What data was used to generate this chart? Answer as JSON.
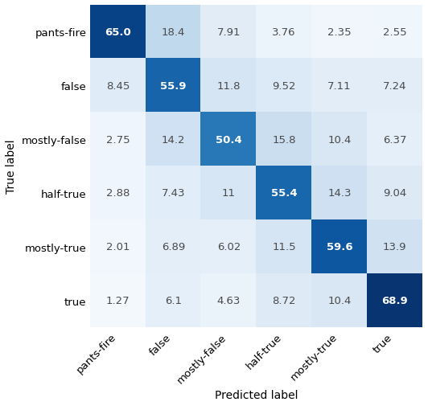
{
  "labels": [
    "pants-fire",
    "false",
    "mostly-false",
    "half-true",
    "mostly-true",
    "true"
  ],
  "matrix": [
    [
      65.0,
      18.4,
      7.91,
      3.76,
      2.35,
      2.55
    ],
    [
      8.45,
      55.9,
      11.8,
      9.52,
      7.11,
      7.24
    ],
    [
      2.75,
      14.2,
      50.4,
      15.8,
      10.4,
      6.37
    ],
    [
      2.88,
      7.43,
      11.0,
      55.4,
      14.3,
      9.04
    ],
    [
      2.01,
      6.89,
      6.02,
      11.5,
      59.6,
      13.9
    ],
    [
      1.27,
      6.1,
      4.63,
      8.72,
      10.4,
      68.9
    ]
  ],
  "xlabel": "Predicted label",
  "ylabel": "True label",
  "cmap": "Blues",
  "vmin": 0,
  "vmax": 70,
  "text_threshold": 0.57,
  "dark_text_color": "#4a4a4a",
  "light_text_color": "#ffffff",
  "fontsize_cell": 9.5,
  "fontsize_label": 9.5,
  "fontsize_axis_label": 10,
  "figsize": [
    5.32,
    5.06
  ],
  "dpi": 100
}
